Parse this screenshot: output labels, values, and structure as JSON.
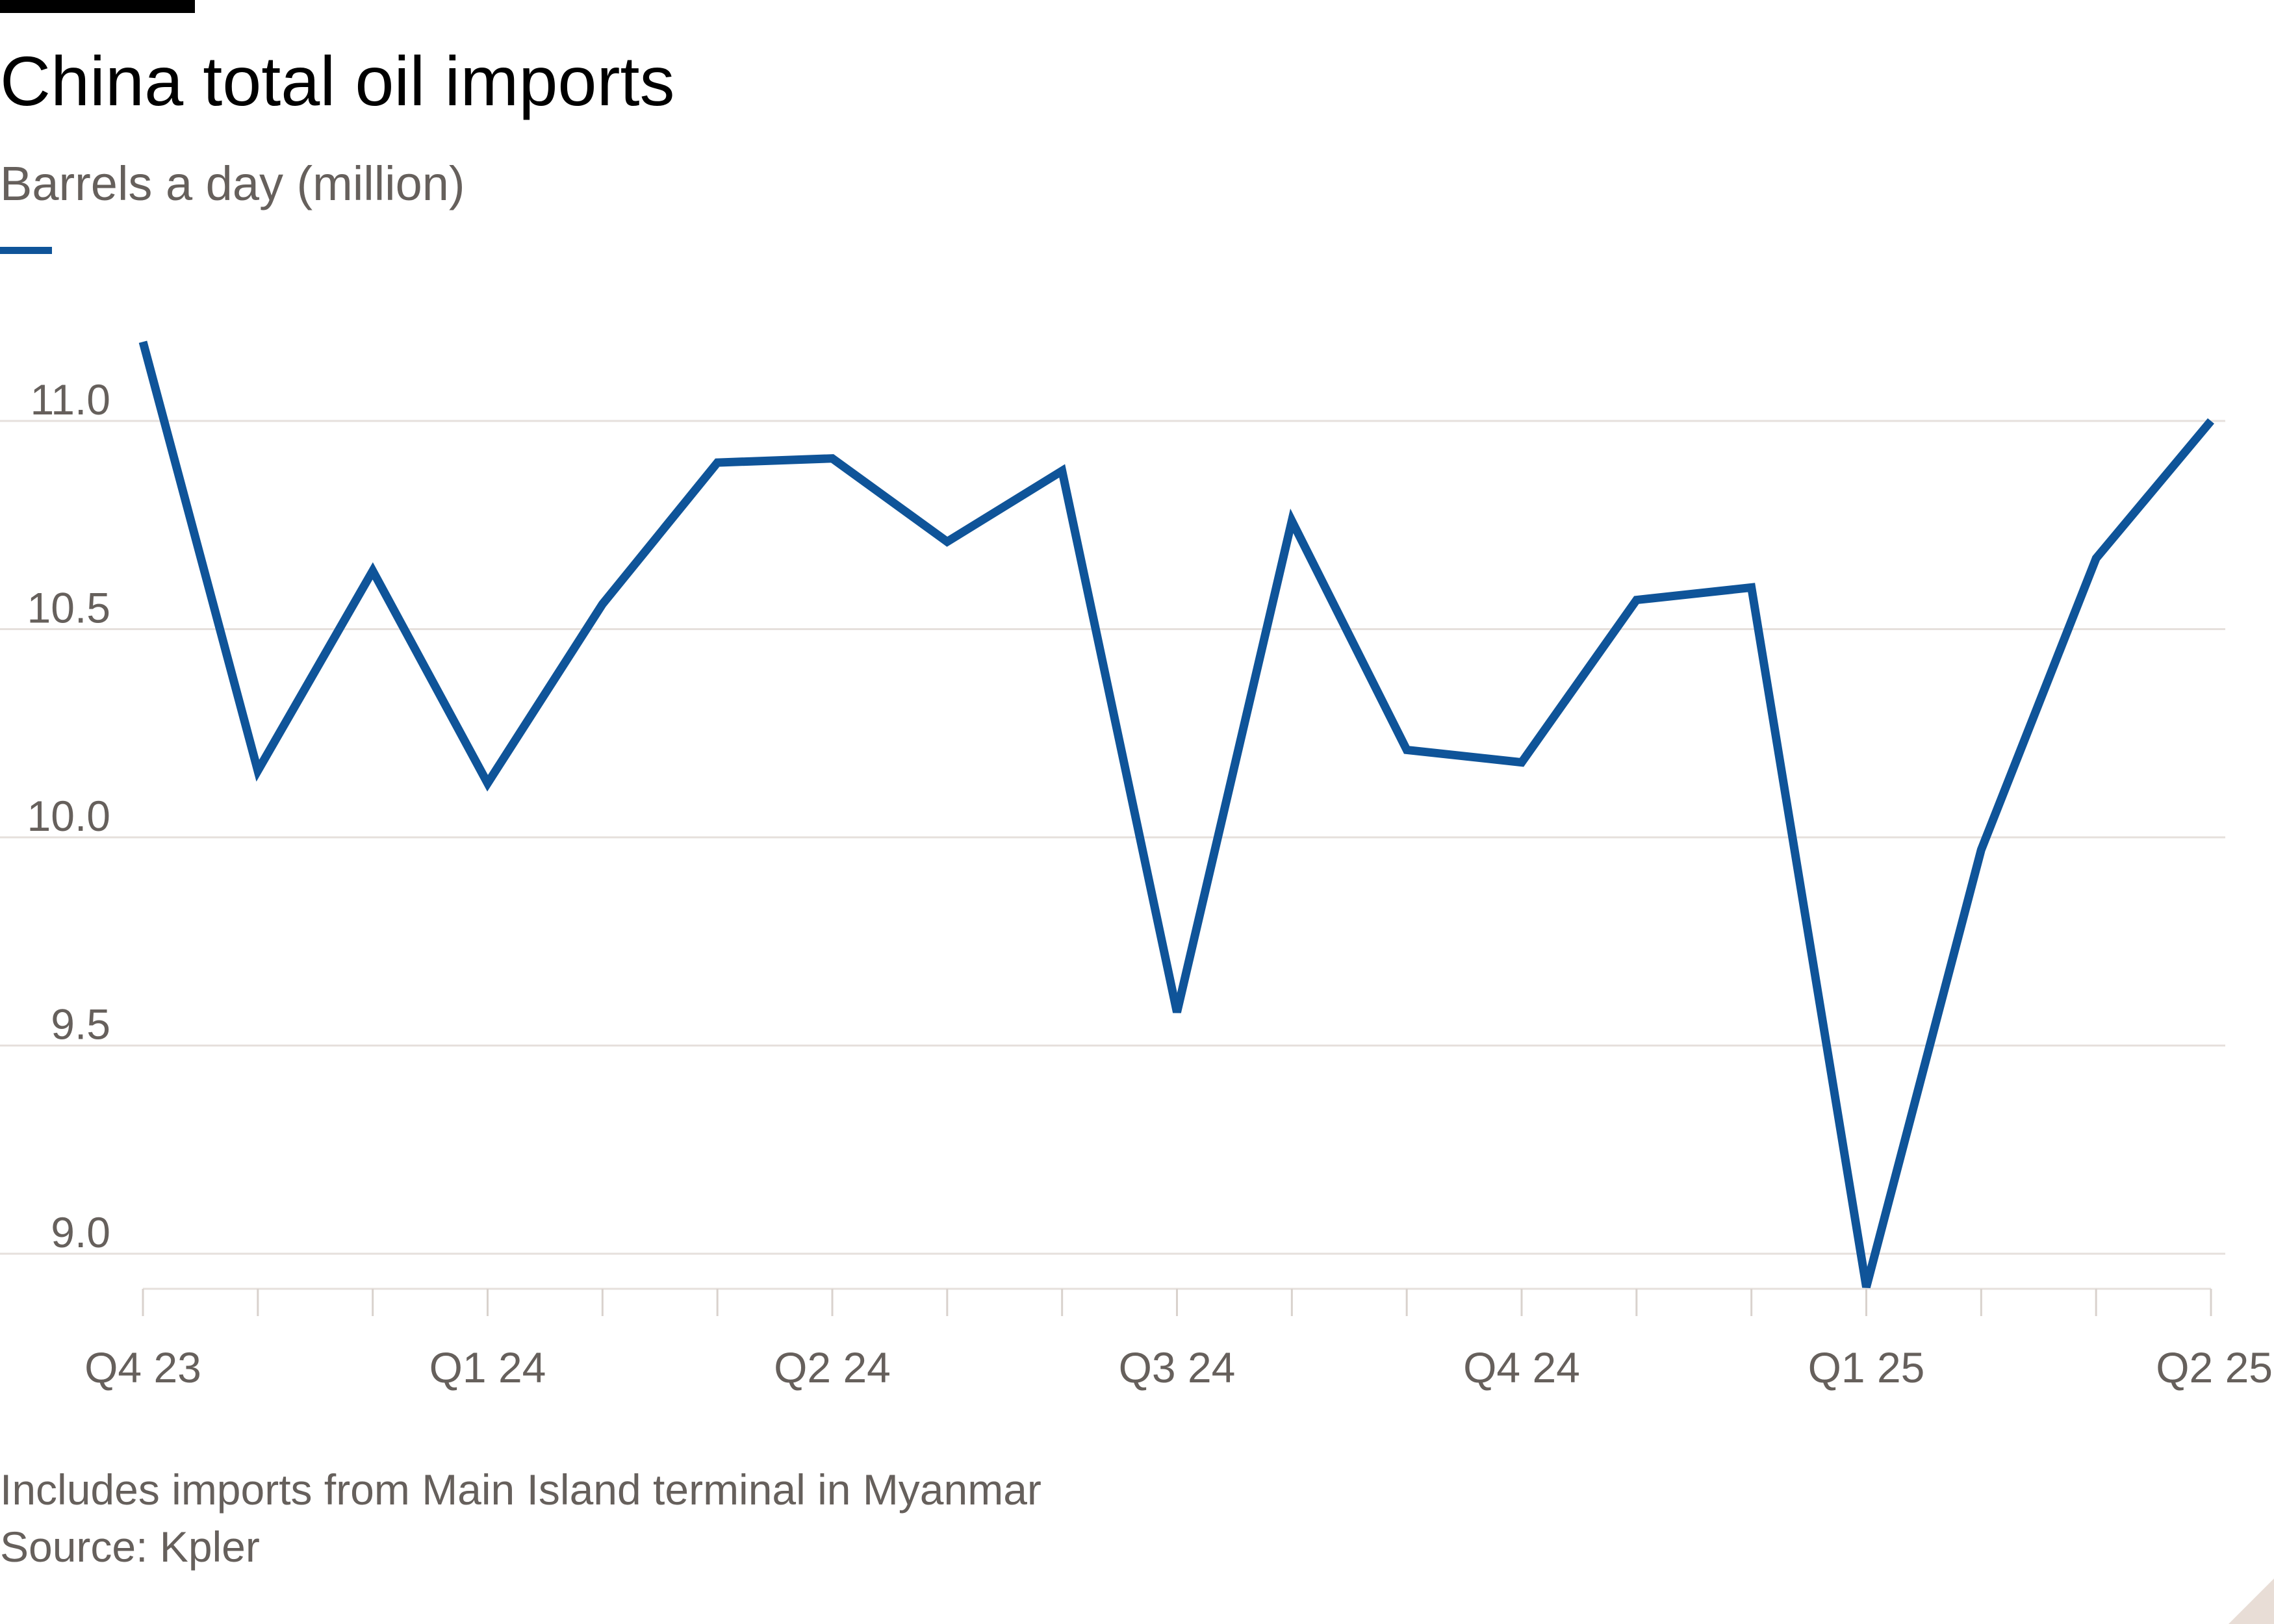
{
  "title": "China total oil imports",
  "subtitle": "Barrels a day (million)",
  "footer": {
    "note": "Includes imports from Main Island terminal in Myanmar",
    "source": "Source: Kpler"
  },
  "colors": {
    "series": "#0f5499",
    "text_muted": "#66605c",
    "grid": "#e6e0dc"
  },
  "chart_data": {
    "type": "line",
    "x_tick_labels": [
      "Q4 23",
      "Q1 24",
      "Q2 24",
      "Q3 24",
      "Q4 24",
      "Q1 25",
      "Q2 25"
    ],
    "y_tick_labels": [
      "9.0",
      "9.5",
      "10.0",
      "10.5",
      "11.0"
    ],
    "y_ticks": [
      9.0,
      9.5,
      10.0,
      10.5,
      11.0
    ],
    "ylim": [
      8.9,
      11.2
    ],
    "grid": true,
    "series": [
      {
        "values": [
          11.19,
          10.16,
          10.64,
          10.13,
          10.56,
          10.9,
          10.91,
          10.71,
          10.88,
          9.58,
          10.76,
          10.21,
          10.18,
          10.57,
          10.6,
          8.92,
          9.97,
          10.67,
          11.0
        ]
      }
    ]
  }
}
